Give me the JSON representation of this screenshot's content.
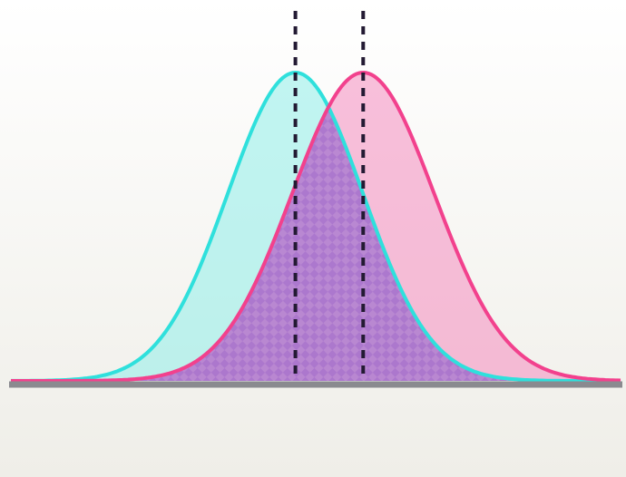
{
  "chart_data": {
    "type": "area",
    "title": "",
    "xlabel": "",
    "ylabel": "",
    "grid": false,
    "legend": "none",
    "xlim": [
      -4.2,
      4.8
    ],
    "ylim": [
      0,
      1.0
    ],
    "series": [
      {
        "distribution": "normal",
        "mean": 0.0,
        "sd": 1.0,
        "peak": 1.0,
        "color": "#2fe0dc",
        "fill": "#8feeea"
      },
      {
        "distribution": "normal",
        "mean": 1.0,
        "sd": 1.05,
        "peak": 1.0,
        "color": "#f2418d",
        "fill": "#f48cbf"
      }
    ],
    "overlap_fill": "#9c5fd0",
    "reference_lines": [
      {
        "x": 0.0,
        "style": "dashed",
        "color": "#231a33"
      },
      {
        "x": 1.0,
        "style": "dashed",
        "color": "#231a33"
      }
    ],
    "baseline_color": "#8a8a8f"
  }
}
